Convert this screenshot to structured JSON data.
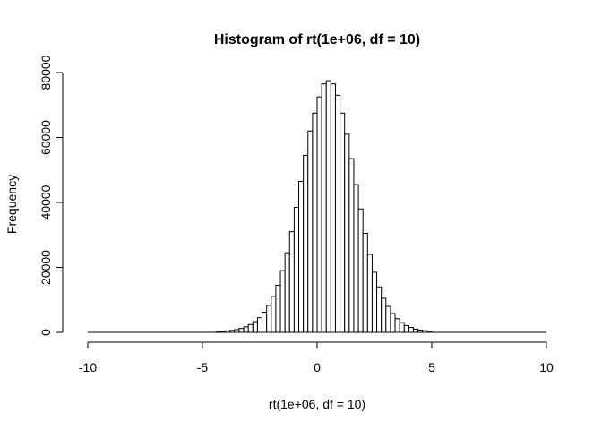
{
  "chart_data": {
    "type": "bar",
    "title": "Histogram of rt(1e+06, df = 10)",
    "xlabel": "rt(1e+06, df = 10)",
    "ylabel": "Frequency",
    "xlim": [
      -10,
      10
    ],
    "ylim": [
      0,
      80000
    ],
    "x_ticks": [
      "-10",
      "-5",
      "0",
      "5",
      "10"
    ],
    "y_ticks": [
      "0",
      "20000",
      "40000",
      "60000",
      "80000"
    ],
    "grid": false,
    "legend": "none",
    "bin_width": 0.2,
    "bins": [
      {
        "x0": -4.4,
        "x1": -4.2,
        "count": 200
      },
      {
        "x0": -4.2,
        "x1": -4.0,
        "count": 300
      },
      {
        "x0": -4.0,
        "x1": -3.8,
        "count": 450
      },
      {
        "x0": -3.8,
        "x1": -3.6,
        "count": 600
      },
      {
        "x0": -3.6,
        "x1": -3.4,
        "count": 850
      },
      {
        "x0": -3.4,
        "x1": -3.2,
        "count": 1200
      },
      {
        "x0": -3.2,
        "x1": -3.0,
        "count": 1700
      },
      {
        "x0": -3.0,
        "x1": -2.8,
        "count": 2400
      },
      {
        "x0": -2.8,
        "x1": -2.6,
        "count": 3300
      },
      {
        "x0": -2.6,
        "x1": -2.4,
        "count": 4500
      },
      {
        "x0": -2.4,
        "x1": -2.2,
        "count": 6200
      },
      {
        "x0": -2.2,
        "x1": -2.0,
        "count": 8300
      },
      {
        "x0": -2.0,
        "x1": -1.8,
        "count": 11000
      },
      {
        "x0": -1.8,
        "x1": -1.6,
        "count": 14500
      },
      {
        "x0": -1.6,
        "x1": -1.4,
        "count": 19000
      },
      {
        "x0": -1.4,
        "x1": -1.2,
        "count": 24500
      },
      {
        "x0": -1.2,
        "x1": -1.0,
        "count": 31000
      },
      {
        "x0": -1.0,
        "x1": -0.8,
        "count": 38500
      },
      {
        "x0": -0.8,
        "x1": -0.6,
        "count": 46500
      },
      {
        "x0": -0.6,
        "x1": -0.4,
        "count": 54500
      },
      {
        "x0": -0.4,
        "x1": -0.2,
        "count": 62000
      },
      {
        "x0": -0.2,
        "x1": 0.0,
        "count": 67500
      },
      {
        "x0": 0.0,
        "x1": 0.2,
        "count": 72500
      },
      {
        "x0": 0.2,
        "x1": 0.4,
        "count": 76500
      },
      {
        "x0": 0.4,
        "x1": 0.6,
        "count": 77500
      },
      {
        "x0": 0.6,
        "x1": 0.8,
        "count": 76500
      },
      {
        "x0": 0.8,
        "x1": 1.0,
        "count": 73000
      },
      {
        "x0": 1.0,
        "x1": 1.2,
        "count": 67500
      },
      {
        "x0": 1.2,
        "x1": 1.4,
        "count": 61000
      },
      {
        "x0": 1.4,
        "x1": 1.6,
        "count": 53500
      },
      {
        "x0": 1.6,
        "x1": 1.8,
        "count": 45500
      },
      {
        "x0": 1.8,
        "x1": 2.0,
        "count": 38000
      },
      {
        "x0": 2.0,
        "x1": 2.2,
        "count": 30500
      },
      {
        "x0": 2.2,
        "x1": 2.4,
        "count": 24000
      },
      {
        "x0": 2.4,
        "x1": 2.6,
        "count": 18500
      },
      {
        "x0": 2.6,
        "x1": 2.8,
        "count": 14000
      },
      {
        "x0": 2.8,
        "x1": 3.0,
        "count": 10500
      },
      {
        "x0": 3.0,
        "x1": 3.2,
        "count": 8000
      },
      {
        "x0": 3.2,
        "x1": 3.4,
        "count": 5800
      },
      {
        "x0": 3.4,
        "x1": 3.6,
        "count": 4200
      },
      {
        "x0": 3.6,
        "x1": 3.8,
        "count": 3000
      },
      {
        "x0": 3.8,
        "x1": 4.0,
        "count": 2100
      },
      {
        "x0": 4.0,
        "x1": 4.2,
        "count": 1500
      },
      {
        "x0": 4.2,
        "x1": 4.4,
        "count": 1000
      },
      {
        "x0": 4.4,
        "x1": 4.6,
        "count": 700
      },
      {
        "x0": 4.6,
        "x1": 4.8,
        "count": 500
      },
      {
        "x0": 4.8,
        "x1": 5.0,
        "count": 300
      }
    ]
  }
}
